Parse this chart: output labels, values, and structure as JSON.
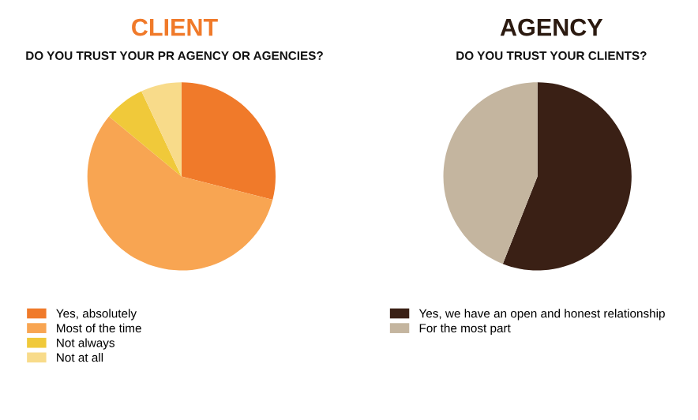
{
  "chart_data": [
    {
      "type": "pie",
      "title": "CLIENT",
      "subtitle": "DO YOU TRUST YOUR PR AGENCY OR AGENCIES?",
      "categories": [
        "Yes, absolutely",
        "Most of the time",
        "Not always",
        "Not at all"
      ],
      "values": [
        29,
        57,
        7,
        7
      ],
      "colors": [
        "#f07a2a",
        "#f8a552",
        "#f0c93a",
        "#f8db8a"
      ],
      "legend": "bottom left"
    },
    {
      "type": "pie",
      "title": "AGENCY",
      "subtitle": "DO YOU TRUST YOUR CLIENTS?",
      "categories": [
        "Yes, we have an open and honest relationship",
        "For the most part"
      ],
      "values": [
        56,
        44
      ],
      "colors": [
        "#3a2015",
        "#c4b59f"
      ],
      "legend": "bottom left"
    }
  ]
}
